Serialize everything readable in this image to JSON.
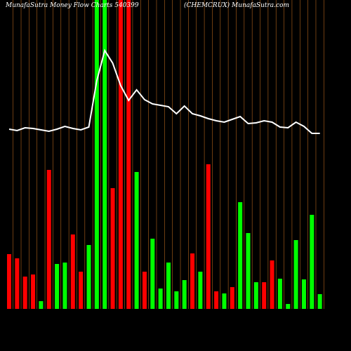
{
  "chart_data": {
    "type": "bar",
    "title": "MunafaSutra  Money Flow  Charts 540399",
    "subtitle": "(CHEMCRUX) MunafaSutra.com",
    "categories": [
      null,
      null,
      null,
      null,
      null,
      null,
      null,
      null,
      null,
      null,
      null,
      null,
      null,
      null,
      null,
      null,
      null,
      null,
      null,
      null,
      null,
      null,
      null,
      null,
      null,
      null,
      null,
      null,
      null,
      null,
      null,
      null,
      null,
      null,
      null,
      null,
      null,
      null,
      null,
      null
    ],
    "values": [
      78,
      72,
      46,
      49,
      11,
      198,
      64,
      66,
      106,
      53,
      91,
      440,
      440,
      172,
      440,
      440,
      195,
      53,
      100,
      29,
      66,
      25,
      41,
      79,
      53,
      206,
      25,
      22,
      31,
      152,
      108,
      38,
      38,
      69,
      43,
      7,
      98,
      42,
      134,
      21
    ],
    "colors": [
      "#ff0000",
      "#ff0000",
      "#ff0000",
      "#ff0000",
      "#00ff00",
      "#ff0000",
      "#00ff00",
      "#00ff00",
      "#ff0000",
      "#ff0000",
      "#00ff00",
      "#00ff00",
      "#00ff00",
      "#ff0000",
      "#ff0000",
      "#ff0000",
      "#00ff00",
      "#ff0000",
      "#00ff00",
      "#00ff00",
      "#00ff00",
      "#00ff00",
      "#00ff00",
      "#ff0000",
      "#00ff00",
      "#ff0000",
      "#ff0000",
      "#00ff00",
      "#ff0000",
      "#00ff00",
      "#00ff00",
      "#00ff00",
      "#ff0000",
      "#ff0000",
      "#00ff00",
      "#00ff00",
      "#00ff00",
      "#00ff00",
      "#00ff00",
      "#00ff00"
    ],
    "line": {
      "color": "#ffffff",
      "values": [
        256,
        254,
        258,
        257,
        255,
        253,
        256,
        260,
        257,
        255,
        259,
        325,
        368,
        350,
        318,
        297,
        312,
        298,
        292,
        290,
        288,
        278,
        289,
        278,
        275,
        271,
        268,
        266,
        270,
        274,
        264,
        265,
        268,
        266,
        259,
        258,
        266,
        260,
        250,
        250
      ]
    },
    "ylim": [
      0,
      440
    ],
    "grid_color": "#b5651d"
  }
}
